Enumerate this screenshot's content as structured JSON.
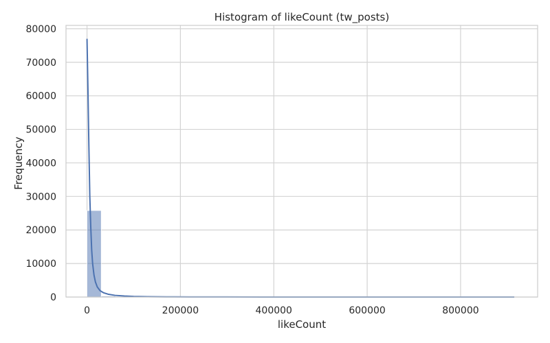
{
  "chart_data": {
    "type": "bar",
    "title": "Histogram of likeCount (tw_posts)",
    "xlabel": "likeCount",
    "ylabel": "Frequency",
    "xlim": [
      -45000,
      965000
    ],
    "ylim": [
      0,
      81000
    ],
    "x_ticks": [
      0,
      200000,
      400000,
      600000,
      800000
    ],
    "y_ticks": [
      0,
      10000,
      20000,
      30000,
      40000,
      50000,
      60000,
      70000,
      80000
    ],
    "grid": true,
    "legend": "none",
    "bar_color": "#4c72b0",
    "bar_opacity": 0.5,
    "kde_color": "#4c72b0",
    "bin_width": 30500,
    "bins": [
      {
        "x0": 0,
        "x1": 30500,
        "count": 25800
      },
      {
        "x0": 30500,
        "x1": 61000,
        "count": 300
      },
      {
        "x0": 61000,
        "x1": 91500,
        "count": 120
      },
      {
        "x0": 91500,
        "x1": 122000,
        "count": 60
      },
      {
        "x0": 122000,
        "x1": 152500,
        "count": 30
      },
      {
        "x0": 152500,
        "x1": 183000,
        "count": 15
      },
      {
        "x0": 183000,
        "x1": 213500,
        "count": 8
      },
      {
        "x0": 213500,
        "x1": 244000,
        "count": 5
      },
      {
        "x0": 244000,
        "x1": 274500,
        "count": 3
      },
      {
        "x0": 274500,
        "x1": 305000,
        "count": 2
      },
      {
        "x0": 305000,
        "x1": 335500,
        "count": 2
      },
      {
        "x0": 335500,
        "x1": 366000,
        "count": 1
      },
      {
        "x0": 366000,
        "x1": 396500,
        "count": 1
      },
      {
        "x0": 396500,
        "x1": 427000,
        "count": 1
      },
      {
        "x0": 427000,
        "x1": 457500,
        "count": 1
      },
      {
        "x0": 457500,
        "x1": 488000,
        "count": 1
      },
      {
        "x0": 488000,
        "x1": 518500,
        "count": 0
      },
      {
        "x0": 518500,
        "x1": 549000,
        "count": 0
      },
      {
        "x0": 549000,
        "x1": 579500,
        "count": 1
      },
      {
        "x0": 579500,
        "x1": 610000,
        "count": 0
      },
      {
        "x0": 610000,
        "x1": 640500,
        "count": 0
      },
      {
        "x0": 640500,
        "x1": 671000,
        "count": 0
      },
      {
        "x0": 671000,
        "x1": 701500,
        "count": 0
      },
      {
        "x0": 701500,
        "x1": 732000,
        "count": 0
      },
      {
        "x0": 732000,
        "x1": 762500,
        "count": 0
      },
      {
        "x0": 762500,
        "x1": 793000,
        "count": 0
      },
      {
        "x0": 793000,
        "x1": 823500,
        "count": 0
      },
      {
        "x0": 823500,
        "x1": 854000,
        "count": 0
      },
      {
        "x0": 854000,
        "x1": 884500,
        "count": 0
      },
      {
        "x0": 884500,
        "x1": 915000,
        "count": 1
      }
    ],
    "kde": {
      "x": [
        0,
        2000,
        4000,
        6000,
        8000,
        10000,
        12000,
        15000,
        18000,
        22000,
        28000,
        35000,
        45000,
        60000,
        80000,
        100000,
        130000,
        170000,
        220000,
        300000,
        400000,
        500000,
        600000,
        700000,
        800000,
        915000
      ],
      "y": [
        77000,
        62000,
        45000,
        30000,
        21000,
        14000,
        10000,
        6500,
        4500,
        3000,
        1900,
        1300,
        850,
        500,
        300,
        180,
        100,
        60,
        30,
        15,
        8,
        5,
        3,
        2,
        1,
        0
      ]
    }
  }
}
